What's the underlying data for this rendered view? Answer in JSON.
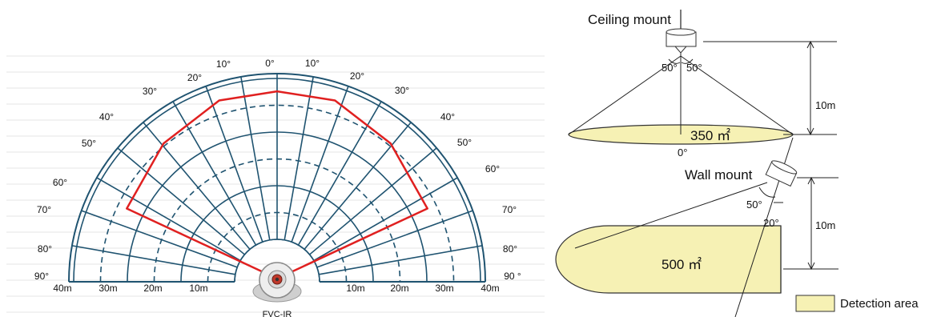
{
  "polar_chart": {
    "angle_labels_left": [
      "0°",
      "10°",
      "20°",
      "30°",
      "40°",
      "50°",
      "60°",
      "70°",
      "80°",
      "90°"
    ],
    "angle_labels_right": [
      "10°",
      "20°",
      "30°",
      "40°",
      "50°",
      "60°",
      "70°",
      "80°",
      "90 °"
    ],
    "distance_labels_left": [
      "40m",
      "30m",
      "20m",
      "10m"
    ],
    "distance_labels_right": [
      "10m",
      "20m",
      "30m",
      "40m"
    ],
    "device_label": "FVC-IR",
    "grid_color": "#1f5370",
    "detection_outline_color": "#e02020",
    "detection_outline": [
      {
        "angle_deg": -90,
        "distance_m": 0
      },
      {
        "angle_deg": -65,
        "distance_m": 33
      },
      {
        "angle_deg": -40,
        "distance_m": 35
      },
      {
        "angle_deg": -18,
        "distance_m": 37
      },
      {
        "angle_deg": 0,
        "distance_m": 37
      },
      {
        "angle_deg": 18,
        "distance_m": 37
      },
      {
        "angle_deg": 40,
        "distance_m": 35
      },
      {
        "angle_deg": 65,
        "distance_m": 33
      },
      {
        "angle_deg": 90,
        "distance_m": 0
      }
    ]
  },
  "ceiling": {
    "title": "Ceiling mount",
    "angle_left": "50°",
    "angle_right": "50°",
    "height": "10m",
    "area": "350 ㎡",
    "zero_label": "0°"
  },
  "wall": {
    "title": "Wall mount",
    "angle_a": "50°",
    "angle_b": "20°",
    "height": "10m",
    "area": "500 ㎡"
  },
  "legend": {
    "label": "Detection area",
    "color": "#f6f1b4"
  }
}
